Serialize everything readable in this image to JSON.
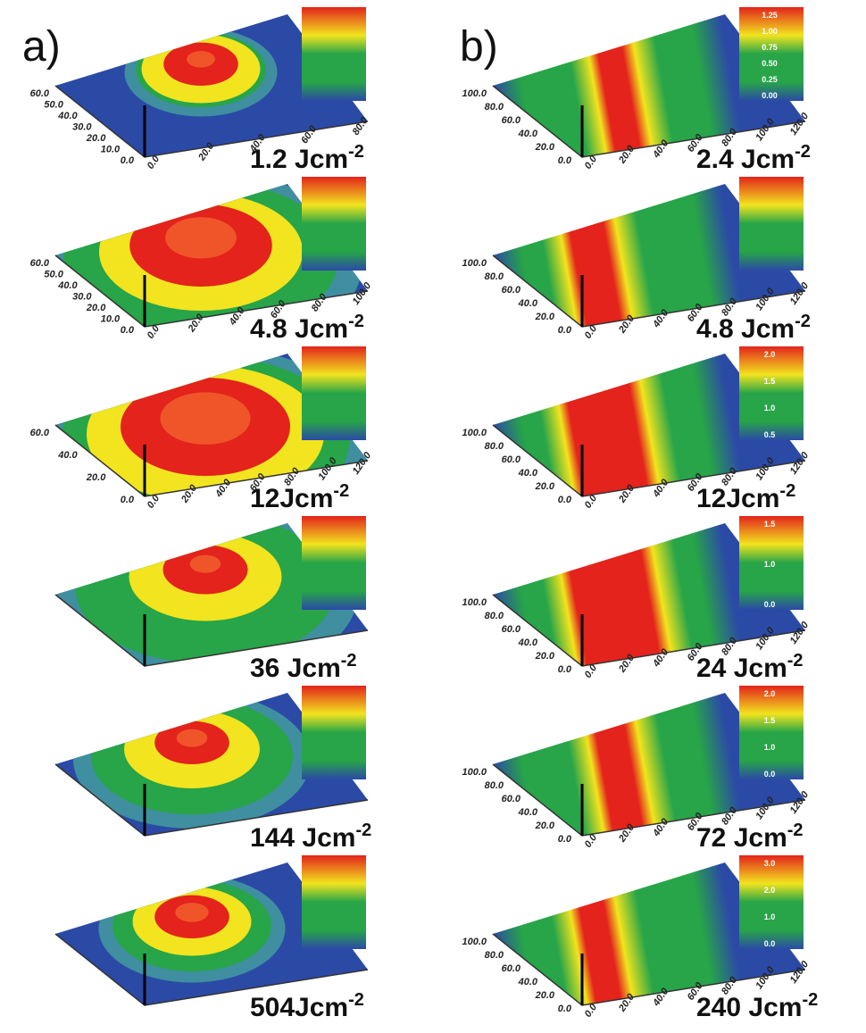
{
  "panels": [
    {
      "label": "a)",
      "plots": [
        {
          "fluence": "1.2 Jcm",
          "exponent": "-2",
          "y_ticks": [
            "60.0",
            "50.0",
            "40.0",
            "30.0",
            "20.0",
            "10.0",
            "0.0"
          ],
          "x_ticks": [
            "0.0",
            "20.0",
            "40.0",
            "60.0",
            "80.0"
          ]
        },
        {
          "fluence": "4.8 Jcm",
          "exponent": "-2",
          "y_ticks": [
            "60.0",
            "50.0",
            "40.0",
            "30.0",
            "20.0",
            "10.0",
            "0.0"
          ],
          "x_ticks": [
            "0.0",
            "20.0",
            "40.0",
            "60.0",
            "80.0",
            "100.0"
          ]
        },
        {
          "fluence": "12Jcm",
          "exponent": "-2",
          "y_ticks": [
            "60.0",
            "40.0",
            "20.0",
            "0.0"
          ],
          "x_ticks": [
            "0.0",
            "20.0",
            "40.0",
            "60.0",
            "80.0",
            "100.0",
            "120.0"
          ]
        },
        {
          "fluence": "36 Jcm",
          "exponent": "-2"
        },
        {
          "fluence": "144 Jcm",
          "exponent": "-2"
        },
        {
          "fluence": "504Jcm",
          "exponent": "-2"
        }
      ]
    },
    {
      "label": "b)",
      "plots": [
        {
          "fluence": "2.4 Jcm",
          "exponent": "-2",
          "y_ticks": [
            "100.0",
            "80.0",
            "60.0",
            "40.0",
            "20.0",
            "0.0"
          ],
          "x_ticks": [
            "0.0",
            "20.0",
            "40.0",
            "60.0",
            "80.0",
            "100.0",
            "120.0"
          ],
          "colorbar": [
            "1.25",
            "1.00",
            "0.75",
            "0.50",
            "0.25",
            "0.00"
          ]
        },
        {
          "fluence": "4.8 Jcm",
          "exponent": "-2",
          "y_ticks": [
            "100.0",
            "80.0",
            "60.0",
            "40.0",
            "20.0",
            "0.0"
          ],
          "x_ticks": [
            "0.0",
            "20.0",
            "40.0",
            "60.0",
            "80.0",
            "100.0",
            "120.0"
          ]
        },
        {
          "fluence": "12Jcm",
          "exponent": "-2",
          "y_ticks": [
            "100.0",
            "80.0",
            "60.0",
            "40.0",
            "20.0",
            "0.0"
          ],
          "x_ticks": [
            "0.0",
            "20.0",
            "40.0",
            "60.0",
            "80.0",
            "100.0",
            "120.0"
          ],
          "colorbar": [
            "2.0",
            "1.5",
            "1.0",
            "0.5"
          ]
        },
        {
          "fluence": "24 Jcm",
          "exponent": "-2",
          "y_ticks": [
            "100.0",
            "80.0",
            "60.0",
            "40.0",
            "20.0",
            "0.0"
          ],
          "x_ticks": [
            "0.0",
            "20.0",
            "40.0",
            "60.0",
            "80.0",
            "100.0",
            "120.0"
          ],
          "colorbar": [
            "1.5",
            "1.0",
            "0.0"
          ]
        },
        {
          "fluence": "72 Jcm",
          "exponent": "-2",
          "y_ticks": [
            "100.0",
            "80.0",
            "60.0",
            "40.0",
            "20.0",
            "0.0"
          ],
          "x_ticks": [
            "0.0",
            "20.0",
            "40.0",
            "60.0",
            "80.0",
            "100.0",
            "120.0"
          ],
          "colorbar": [
            "2.0",
            "1.5",
            "1.0",
            "0.0"
          ]
        },
        {
          "fluence": "240 Jcm",
          "exponent": "-2",
          "y_ticks": [
            "100.0",
            "80.0",
            "60.0",
            "40.0",
            "20.0",
            "0.0"
          ],
          "x_ticks": [
            "0.0",
            "20.0",
            "40.0",
            "60.0",
            "80.0",
            "100.0",
            "120.0"
          ],
          "colorbar": [
            "3.0",
            "2.0",
            "1.0",
            "0.0"
          ]
        }
      ]
    }
  ]
}
